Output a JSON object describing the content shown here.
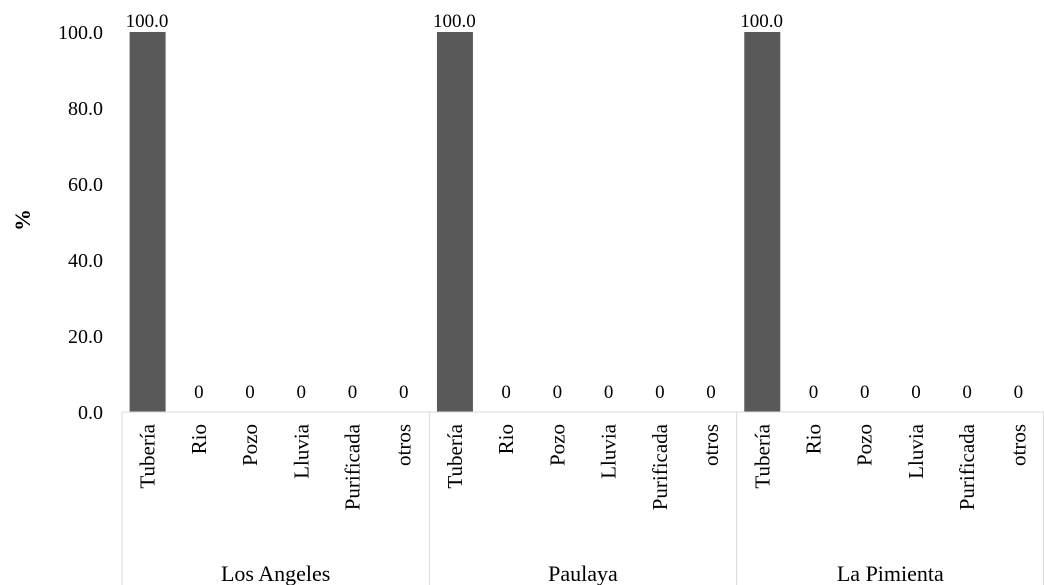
{
  "chart_data": {
    "type": "bar",
    "title": "",
    "xlabel": "",
    "ylabel": "%",
    "ylim": [
      0,
      100
    ],
    "y_ticks": [
      "0.0",
      "20.0",
      "40.0",
      "60.0",
      "80.0",
      "100.0"
    ],
    "grid": false,
    "legend": "none",
    "groups": [
      {
        "name": "Los Angeles",
        "categories": [
          "Tubería",
          "Rio",
          "Pozo",
          "Lluvia",
          "Purificada",
          "otros"
        ],
        "values": [
          100.0,
          0,
          0,
          0,
          0,
          0
        ],
        "labels": [
          "100.0",
          "0",
          "0",
          "0",
          "0",
          "0"
        ]
      },
      {
        "name": "Paulaya",
        "categories": [
          "Tubería",
          "Rio",
          "Pozo",
          "Lluvia",
          "Purificada",
          "otros"
        ],
        "values": [
          100.0,
          0,
          0,
          0,
          0,
          0
        ],
        "labels": [
          "100.0",
          "0",
          "0",
          "0",
          "0",
          "0"
        ]
      },
      {
        "name": "La Pimienta",
        "categories": [
          "Tubería",
          "Rio",
          "Pozo",
          "Lluvia",
          "Purificada",
          "otros"
        ],
        "values": [
          100.0,
          0,
          0,
          0,
          0,
          0
        ],
        "labels": [
          "100.0",
          "0",
          "0",
          "0",
          "0",
          "0"
        ]
      }
    ],
    "colors": {
      "bar": "#595959",
      "axis": "#d9d9d9",
      "text": "#000000"
    }
  }
}
